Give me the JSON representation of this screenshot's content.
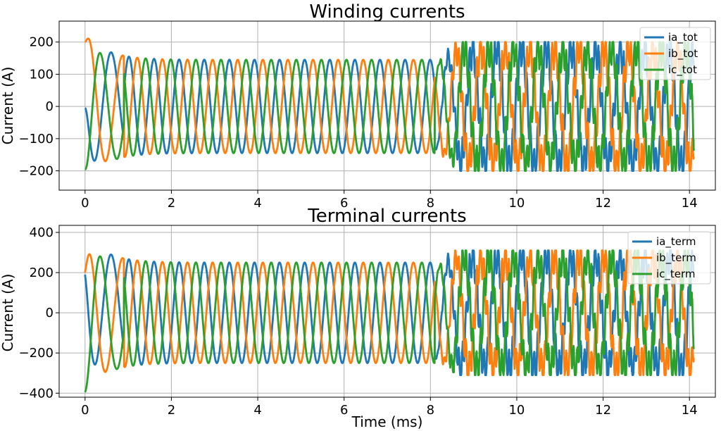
{
  "colors": {
    "ia": "#1f77b4",
    "ib": "#ff7f0e",
    "ic": "#2ca02c"
  },
  "chart_data": [
    {
      "type": "line",
      "title": "Winding currents",
      "xlabel": "",
      "ylabel": "Current (A)",
      "xlim": [
        -0.6,
        14.6
      ],
      "ylim": [
        -260,
        265
      ],
      "x_ticks": [
        0,
        2,
        4,
        6,
        8,
        10,
        12,
        14
      ],
      "x_tick_labels": [
        "0",
        "2",
        "4",
        "6",
        "8",
        "10",
        "12",
        "14"
      ],
      "y_ticks": [
        -200,
        -100,
        0,
        100,
        200
      ],
      "y_tick_labels": [
        "−200",
        "−100",
        "0",
        "100",
        "200"
      ],
      "grid": true,
      "legend_position": "top-right",
      "series": [
        {
          "name": "ia_tot",
          "color": "#1f77b4",
          "phase_deg": 0
        },
        {
          "name": "ib_tot",
          "color": "#ff7f0e",
          "phase_deg": -120
        },
        {
          "name": "ic_tot",
          "color": "#2ca02c",
          "phase_deg": 120
        }
      ],
      "x_range_ms": [
        0,
        14.1
      ],
      "frequency_khz": 1.72,
      "initial_values": [
        -5,
        200,
        -195
      ],
      "initial_peak": 238,
      "steady_amplitude_before_8ms": 145,
      "steady_amplitude_after_8.3ms": 200,
      "disturbance_start_ms": 8.3
    },
    {
      "type": "line",
      "title": "Terminal currents",
      "xlabel": "Time (ms)",
      "ylabel": "Current (A)",
      "xlim": [
        -0.6,
        14.6
      ],
      "ylim": [
        -420,
        435
      ],
      "x_ticks": [
        0,
        2,
        4,
        6,
        8,
        10,
        12,
        14
      ],
      "x_tick_labels": [
        "0",
        "2",
        "4",
        "6",
        "8",
        "10",
        "12",
        "14"
      ],
      "y_ticks": [
        -400,
        -200,
        0,
        200,
        400
      ],
      "y_tick_labels": [
        "−400",
        "−200",
        "0",
        "200",
        "400"
      ],
      "grid": true,
      "legend_position": "top-right",
      "series": [
        {
          "name": "ia_term",
          "color": "#1f77b4",
          "phase_deg": 0
        },
        {
          "name": "ib_term",
          "color": "#ff7f0e",
          "phase_deg": -120
        },
        {
          "name": "ic_term",
          "color": "#2ca02c",
          "phase_deg": 120
        }
      ],
      "x_range_ms": [
        0,
        14.1
      ],
      "frequency_khz": 1.72,
      "initial_values": [
        190,
        200,
        -395
      ],
      "initial_peak": 405,
      "steady_amplitude_before_8ms": 250,
      "steady_amplitude_after_8.3ms": 310,
      "disturbance_start_ms": 8.3
    }
  ]
}
